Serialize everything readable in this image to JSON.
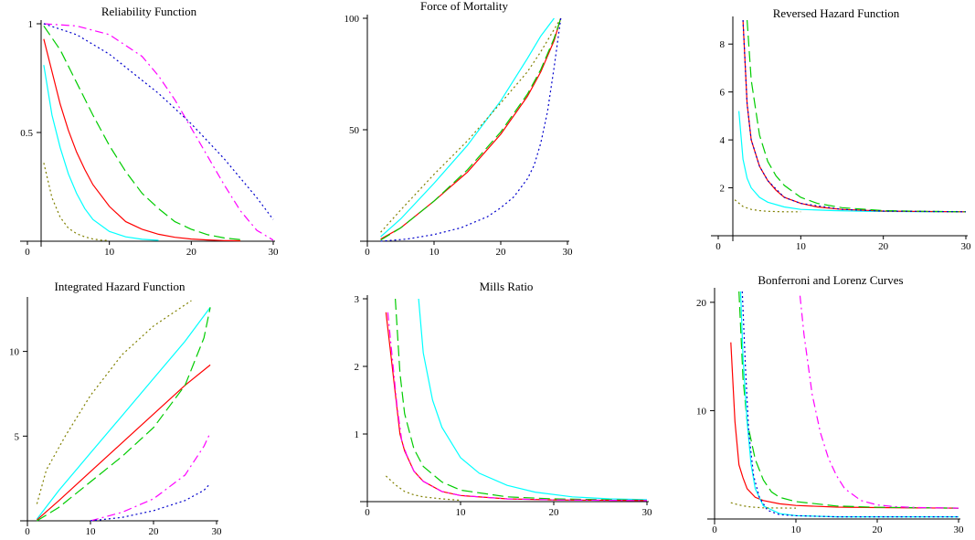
{
  "chart_data": [
    {
      "type": "line",
      "title": "Reliability Function",
      "xlim": [
        0,
        30
      ],
      "ylim": [
        0,
        1
      ],
      "xticks": [
        {
          "v": 0,
          "label": "0"
        },
        {
          "v": 10,
          "label": "10"
        },
        {
          "v": 20,
          "label": "20"
        },
        {
          "v": 30,
          "label": "30"
        }
      ],
      "yticks": [
        {
          "v": 0.5,
          "label": "0.5"
        },
        {
          "v": 1,
          "label": "1"
        }
      ],
      "series": [
        {
          "color": "#ff0000",
          "dash": "",
          "x": [
            2,
            3,
            4,
            5,
            6,
            7,
            8,
            10,
            12,
            14,
            16,
            18,
            20,
            22,
            24,
            26
          ],
          "y": [
            0.93,
            0.78,
            0.63,
            0.51,
            0.41,
            0.33,
            0.26,
            0.16,
            0.09,
            0.055,
            0.032,
            0.018,
            0.01,
            0.006,
            0.003,
            0.002
          ]
        },
        {
          "color": "#00ffff",
          "dash": "",
          "x": [
            2,
            3,
            4,
            5,
            6,
            7,
            8,
            10,
            12,
            14,
            16
          ],
          "y": [
            0.81,
            0.58,
            0.43,
            0.31,
            0.22,
            0.15,
            0.1,
            0.045,
            0.02,
            0.009,
            0.004
          ]
        },
        {
          "color": "#00cc00",
          "dash": "12,5",
          "x": [
            2,
            4,
            6,
            8,
            10,
            12,
            14,
            16,
            18,
            20,
            22,
            24,
            26
          ],
          "y": [
            0.99,
            0.88,
            0.73,
            0.58,
            0.44,
            0.32,
            0.22,
            0.15,
            0.09,
            0.055,
            0.03,
            0.015,
            0.007
          ]
        },
        {
          "color": "#808000",
          "dash": "2,3",
          "x": [
            2,
            3,
            4,
            5,
            6,
            7,
            8,
            9,
            10
          ],
          "y": [
            0.36,
            0.2,
            0.11,
            0.06,
            0.035,
            0.02,
            0.01,
            0.005,
            0.003
          ]
        },
        {
          "color": "#ff00ff",
          "dash": "9,4,2,4",
          "x": [
            2,
            6,
            10,
            14,
            16,
            18,
            20,
            22,
            24,
            26,
            28,
            30
          ],
          "y": [
            1,
            0.99,
            0.95,
            0.85,
            0.76,
            0.65,
            0.52,
            0.39,
            0.26,
            0.14,
            0.05,
            0.005
          ]
        },
        {
          "color": "#0000cc",
          "dash": "2,3",
          "x": [
            2,
            6,
            10,
            14,
            16,
            18,
            20,
            22,
            24,
            26,
            28,
            30
          ],
          "y": [
            1,
            0.95,
            0.86,
            0.74,
            0.68,
            0.61,
            0.54,
            0.46,
            0.38,
            0.29,
            0.2,
            0.1
          ]
        }
      ]
    },
    {
      "type": "line",
      "title": "Force of Mortality",
      "xlim": [
        0,
        30
      ],
      "ylim": [
        0,
        100
      ],
      "xticks": [
        {
          "v": 0,
          "label": "0"
        },
        {
          "v": 10,
          "label": "10"
        },
        {
          "v": 20,
          "label": "20"
        },
        {
          "v": 30,
          "label": "30"
        }
      ],
      "yticks": [
        {
          "v": 50,
          "label": "50"
        },
        {
          "v": 100,
          "label": "100"
        }
      ],
      "series": [
        {
          "color": "#ff0000",
          "dash": "",
          "x": [
            2,
            5,
            10,
            15,
            20,
            24,
            26,
            28,
            29
          ],
          "y": [
            1,
            6,
            18,
            31,
            48,
            65,
            76,
            90,
            100
          ]
        },
        {
          "color": "#00cc00",
          "dash": "12,5",
          "x": [
            2,
            5,
            10,
            15,
            20,
            24,
            26,
            28,
            29
          ],
          "y": [
            0.5,
            6,
            18,
            32,
            49,
            66,
            77,
            91,
            100
          ]
        },
        {
          "color": "#00ffff",
          "dash": "",
          "x": [
            2,
            5,
            10,
            15,
            20,
            24,
            26,
            28
          ],
          "y": [
            2,
            10,
            26,
            43,
            63,
            82,
            92,
            100
          ]
        },
        {
          "color": "#808000",
          "dash": "2,3",
          "x": [
            2,
            5,
            10,
            15,
            20,
            24,
            26,
            29
          ],
          "y": [
            4,
            14,
            30,
            45,
            62,
            76,
            85,
            100
          ]
        },
        {
          "color": "#0000cc",
          "dash": "2,3",
          "x": [
            2,
            6,
            10,
            14,
            18,
            20,
            22,
            24,
            25,
            26,
            27,
            28,
            29
          ],
          "y": [
            0,
            1,
            3,
            6,
            11,
            15,
            20,
            28,
            34,
            44,
            58,
            78,
            100
          ]
        }
      ]
    },
    {
      "type": "line",
      "title": "Reversed Hazard Function",
      "xlim": [
        0,
        30
      ],
      "ylim": [
        0,
        9
      ],
      "xticks": [
        {
          "v": 0,
          "label": "0"
        },
        {
          "v": 10,
          "label": "10"
        },
        {
          "v": 20,
          "label": "20"
        },
        {
          "v": 30,
          "label": "30"
        }
      ],
      "yticks": [
        {
          "v": 2,
          "label": "2"
        },
        {
          "v": 4,
          "label": "4"
        },
        {
          "v": 6,
          "label": "6"
        },
        {
          "v": 8,
          "label": "8"
        }
      ],
      "series": [
        {
          "color": "#00ffff",
          "dash": "",
          "x": [
            2.5,
            3,
            3.5,
            4,
            5,
            6,
            8,
            10,
            14,
            18,
            22,
            26,
            30
          ],
          "y": [
            5.2,
            3.2,
            2.4,
            2.0,
            1.6,
            1.4,
            1.2,
            1.1,
            1.05,
            1.02,
            1.01,
            1.0,
            1.0
          ]
        },
        {
          "color": "#ff0000",
          "dash": "",
          "x": [
            3,
            3.5,
            4,
            5,
            6,
            7,
            8,
            10,
            12,
            15,
            20,
            25,
            30
          ],
          "y": [
            9,
            5.5,
            4.0,
            2.9,
            2.3,
            1.9,
            1.6,
            1.35,
            1.2,
            1.1,
            1.03,
            1.01,
            1.0
          ]
        },
        {
          "color": "#00cc00",
          "dash": "12,5",
          "x": [
            3.5,
            4,
            5,
            6,
            7,
            8,
            10,
            12,
            15,
            20,
            25,
            30
          ],
          "y": [
            9,
            6.5,
            4.2,
            3.1,
            2.5,
            2.1,
            1.6,
            1.35,
            1.17,
            1.05,
            1.02,
            1.0
          ]
        },
        {
          "color": "#808000",
          "dash": "2,3",
          "x": [
            2,
            3,
            4,
            5,
            6,
            8,
            10
          ],
          "y": [
            1.5,
            1.22,
            1.1,
            1.05,
            1.02,
            1.0,
            1.0
          ]
        },
        {
          "color": "#0000cc",
          "dash": "2,3",
          "x": [
            3,
            3.5,
            4,
            5,
            6,
            8,
            10,
            15,
            20,
            30
          ],
          "y": [
            9,
            5.5,
            4.0,
            2.9,
            2.3,
            1.6,
            1.35,
            1.1,
            1.03,
            1.0
          ]
        }
      ]
    },
    {
      "type": "line",
      "title": "Integrated Hazard Function",
      "xlim": [
        0,
        30
      ],
      "ylim": [
        0,
        13
      ],
      "xticks": [
        {
          "v": 0,
          "label": "0"
        },
        {
          "v": 10,
          "label": "10"
        },
        {
          "v": 20,
          "label": "20"
        },
        {
          "v": 30,
          "label": "30"
        }
      ],
      "yticks": [
        {
          "v": 5,
          "label": "5"
        },
        {
          "v": 10,
          "label": "10"
        }
      ],
      "series": [
        {
          "color": "#808000",
          "dash": "2,3",
          "x": [
            1.5,
            3,
            6,
            10,
            15,
            20,
            26
          ],
          "y": [
            1,
            3,
            5,
            7.4,
            9.8,
            11.5,
            13
          ]
        },
        {
          "color": "#00ffff",
          "dash": "",
          "x": [
            1.5,
            5,
            10,
            15,
            20,
            25,
            29
          ],
          "y": [
            0.1,
            1.8,
            4,
            6.2,
            8.4,
            10.6,
            12.6
          ]
        },
        {
          "color": "#ff0000",
          "dash": "",
          "x": [
            1.5,
            5,
            10,
            15,
            20,
            25,
            29
          ],
          "y": [
            0.05,
            1.2,
            2.9,
            4.6,
            6.3,
            8,
            9.2
          ]
        },
        {
          "color": "#00cc00",
          "dash": "12,5",
          "x": [
            1.5,
            5,
            10,
            15,
            20,
            25,
            28,
            29
          ],
          "y": [
            0,
            0.8,
            2.3,
            3.8,
            5.5,
            8,
            10.8,
            12.6
          ]
        },
        {
          "color": "#ff00ff",
          "dash": "9,4,2,4",
          "x": [
            10,
            15,
            20,
            25,
            28,
            29
          ],
          "y": [
            0,
            0.5,
            1.3,
            2.7,
            4.4,
            5.2
          ]
        },
        {
          "color": "#0000cc",
          "dash": "2,3",
          "x": [
            10,
            15,
            20,
            25,
            28,
            29
          ],
          "y": [
            0,
            0.2,
            0.6,
            1.2,
            1.8,
            2.2
          ]
        }
      ]
    },
    {
      "type": "line",
      "title": "Mills Ratio",
      "xlim": [
        0,
        30
      ],
      "ylim": [
        0,
        3
      ],
      "xticks": [
        {
          "v": 0,
          "label": "0"
        },
        {
          "v": 10,
          "label": "10"
        },
        {
          "v": 20,
          "label": "20"
        },
        {
          "v": 30,
          "label": "30"
        }
      ],
      "yticks": [
        {
          "v": 1,
          "label": "1"
        },
        {
          "v": 2,
          "label": "2"
        },
        {
          "v": 3,
          "label": "3"
        }
      ],
      "series": [
        {
          "color": "#00ffff",
          "dash": "",
          "x": [
            5.5,
            6,
            7,
            8,
            10,
            12,
            15,
            18,
            22,
            26,
            30
          ],
          "y": [
            3,
            2.2,
            1.5,
            1.1,
            0.65,
            0.42,
            0.24,
            0.14,
            0.07,
            0.04,
            0.03
          ]
        },
        {
          "color": "#00cc00",
          "dash": "12,5",
          "x": [
            3,
            3.5,
            4,
            5,
            6,
            8,
            10,
            15,
            20,
            25,
            30
          ],
          "y": [
            3,
            1.9,
            1.3,
            0.78,
            0.52,
            0.29,
            0.17,
            0.07,
            0.04,
            0.03,
            0.02
          ]
        },
        {
          "color": "#ff0000",
          "dash": "",
          "x": [
            2,
            2.5,
            3,
            3.5,
            4,
            5,
            6,
            8,
            10,
            15,
            20,
            30
          ],
          "y": [
            2.8,
            2.2,
            1.6,
            1.0,
            0.75,
            0.45,
            0.3,
            0.15,
            0.09,
            0.04,
            0.025,
            0.015
          ]
        },
        {
          "color": "#ff00ff",
          "dash": "9,4,2,4",
          "x": [
            2.2,
            2.7,
            3.2,
            3.7,
            4.2,
            5,
            6,
            8,
            10,
            15,
            20,
            30
          ],
          "y": [
            2.8,
            2.1,
            1.4,
            0.9,
            0.7,
            0.45,
            0.3,
            0.15,
            0.09,
            0.04,
            0.025,
            0.015
          ]
        },
        {
          "color": "#808000",
          "dash": "2,3",
          "x": [
            2,
            3,
            4,
            5,
            6,
            8,
            10
          ],
          "y": [
            0.38,
            0.25,
            0.15,
            0.1,
            0.07,
            0.04,
            0.02
          ]
        }
      ]
    },
    {
      "type": "line",
      "title": "Bonferroni and Lorenz Curves",
      "xlim": [
        0,
        30
      ],
      "ylim": [
        0,
        21
      ],
      "xticks": [
        {
          "v": 0,
          "label": "0"
        },
        {
          "v": 10,
          "label": "10"
        },
        {
          "v": 20,
          "label": "20"
        },
        {
          "v": 30,
          "label": "30"
        }
      ],
      "yticks": [
        {
          "v": 10,
          "label": "10"
        },
        {
          "v": 20,
          "label": "20"
        }
      ],
      "series": [
        {
          "color": "#ff0000",
          "dash": "",
          "x": [
            2,
            2.5,
            3,
            3.5,
            4,
            5,
            6,
            8,
            10,
            15,
            20,
            25,
            30
          ],
          "y": [
            16.3,
            9,
            5,
            3.8,
            2.8,
            2,
            1.7,
            1.4,
            1.25,
            1.1,
            1.05,
            1.02,
            1.0
          ]
        },
        {
          "color": "#00cc00",
          "dash": "12,5",
          "x": [
            3,
            3.5,
            4,
            5,
            6,
            7,
            8,
            10,
            15,
            20,
            30
          ],
          "y": [
            21,
            13,
            9,
            5.5,
            3.6,
            2.5,
            2,
            1.6,
            1.2,
            1.08,
            1.0
          ]
        },
        {
          "color": "#00ffff",
          "dash": "",
          "x": [
            3.2,
            3.5,
            4,
            4.5,
            5,
            6,
            8,
            10,
            15,
            20,
            30
          ],
          "y": [
            21,
            15,
            9,
            5,
            2.8,
            1.2,
            0.5,
            0.3,
            0.2,
            0.2,
            0.2
          ]
        },
        {
          "color": "#0000cc",
          "dash": "2,3",
          "x": [
            3.4,
            3.8,
            4.2,
            4.8,
            5.5,
            6.5,
            8,
            10,
            15,
            20,
            30
          ],
          "y": [
            21,
            14,
            8,
            4,
            2,
            0.8,
            0.4,
            0.3,
            0.2,
            0.2,
            0.2
          ]
        },
        {
          "color": "#ff00ff",
          "dash": "9,4,2,4",
          "x": [
            10.5,
            11,
            12,
            13,
            14,
            15,
            16,
            18,
            20,
            22,
            25,
            30
          ],
          "y": [
            20.6,
            17,
            11.5,
            8,
            5.6,
            4,
            2.8,
            1.7,
            1.3,
            1.15,
            1.05,
            1.0
          ]
        },
        {
          "color": "#808000",
          "dash": "2,3",
          "x": [
            2,
            3,
            4,
            5,
            6,
            8,
            10
          ],
          "y": [
            1.5,
            1.3,
            1.15,
            1.08,
            1.03,
            1.01,
            1.0
          ]
        }
      ]
    }
  ]
}
